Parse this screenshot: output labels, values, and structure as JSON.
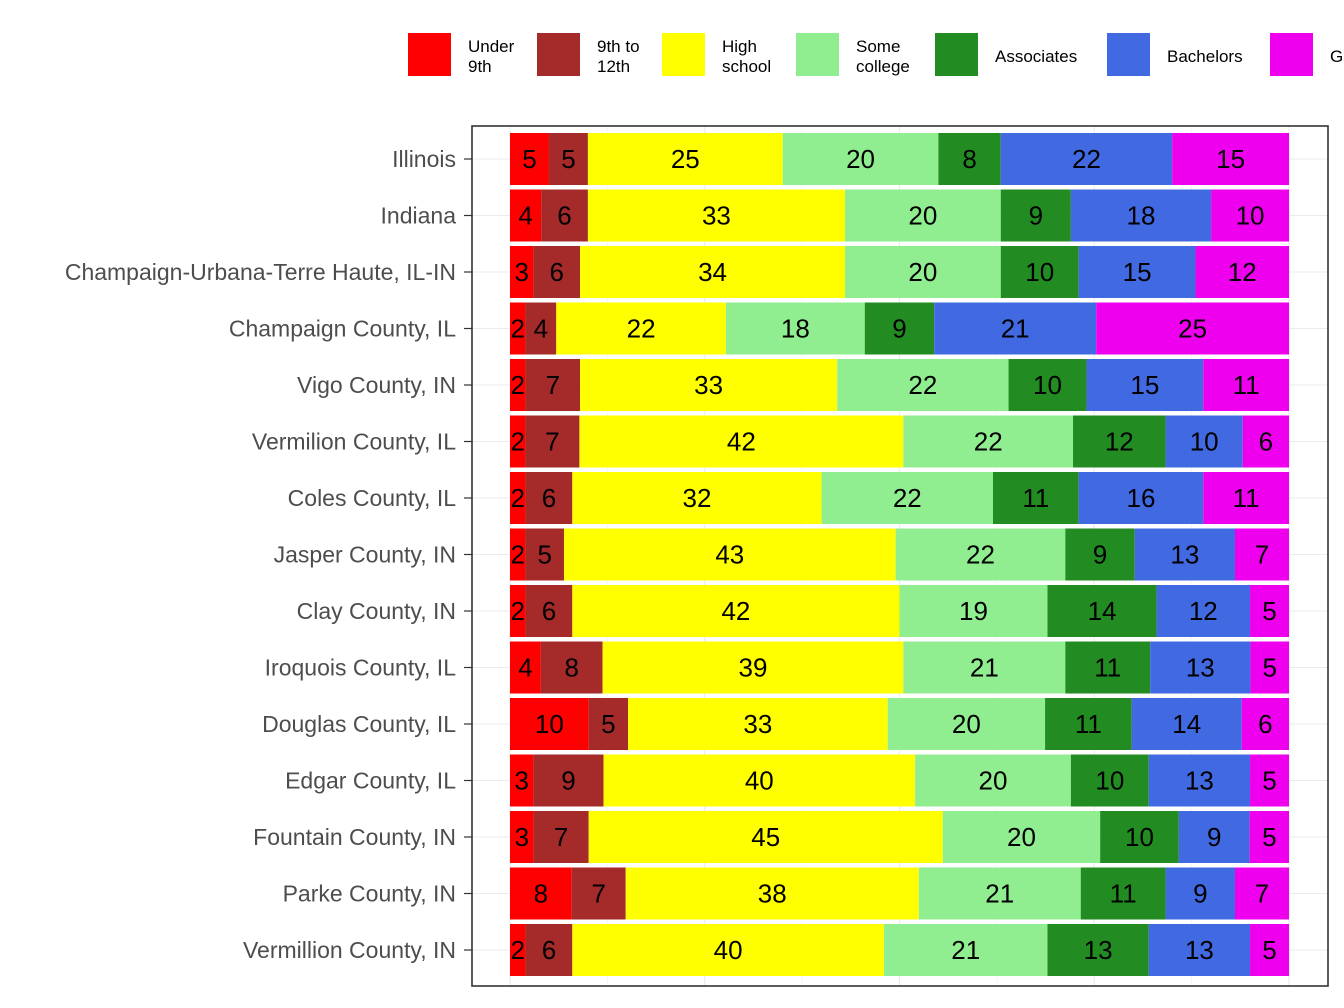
{
  "chart_data": {
    "type": "bar",
    "orientation": "horizontal",
    "stacked": true,
    "grid": true,
    "legend_position": "top",
    "categories": [
      "Illinois",
      "Indiana",
      "Champaign-Urbana-Terre Haute, IL-IN",
      "Champaign County, IL",
      "Vigo County, IN",
      "Vermilion County, IL",
      "Coles County, IL",
      "Jasper County, IN",
      "Clay County, IN",
      "Iroquois County, IL",
      "Douglas County, IL",
      "Edgar County, IL",
      "Fountain County, IN",
      "Parke County, IN",
      "Vermillion County, IN"
    ],
    "series": [
      {
        "name": "Under 9th",
        "legend_lines": [
          "Under",
          "9th"
        ],
        "color": "#ff0000",
        "values": [
          5,
          4,
          3,
          2,
          2,
          2,
          2,
          2,
          2,
          4,
          10,
          3,
          3,
          8,
          2
        ]
      },
      {
        "name": "9th to 12th",
        "legend_lines": [
          "9th to",
          "12th"
        ],
        "color": "#a52a2a",
        "values": [
          5,
          6,
          6,
          4,
          7,
          7,
          6,
          5,
          6,
          8,
          5,
          9,
          7,
          7,
          6
        ]
      },
      {
        "name": "High school",
        "legend_lines": [
          "High",
          "school"
        ],
        "color": "#ffff00",
        "values": [
          25,
          33,
          34,
          22,
          33,
          42,
          32,
          43,
          42,
          39,
          33,
          40,
          45,
          38,
          40
        ]
      },
      {
        "name": "Some college",
        "legend_lines": [
          "Some",
          "college"
        ],
        "color": "#90ee90",
        "values": [
          20,
          20,
          20,
          18,
          22,
          22,
          22,
          22,
          19,
          21,
          20,
          20,
          20,
          21,
          21
        ]
      },
      {
        "name": "Associates",
        "legend_lines": [
          "Associates"
        ],
        "color": "#228b22",
        "values": [
          8,
          9,
          10,
          9,
          10,
          12,
          11,
          9,
          14,
          11,
          11,
          10,
          10,
          11,
          13
        ]
      },
      {
        "name": "Bachelors",
        "legend_lines": [
          "Bachelors"
        ],
        "color": "#4169e1",
        "values": [
          22,
          18,
          15,
          21,
          15,
          10,
          16,
          13,
          12,
          13,
          14,
          13,
          9,
          9,
          13
        ]
      },
      {
        "name": "G",
        "legend_lines": [
          "G"
        ],
        "color": "#ee00ee",
        "values": [
          15,
          10,
          12,
          25,
          11,
          6,
          11,
          7,
          5,
          5,
          6,
          5,
          5,
          7,
          5
        ]
      }
    ]
  }
}
